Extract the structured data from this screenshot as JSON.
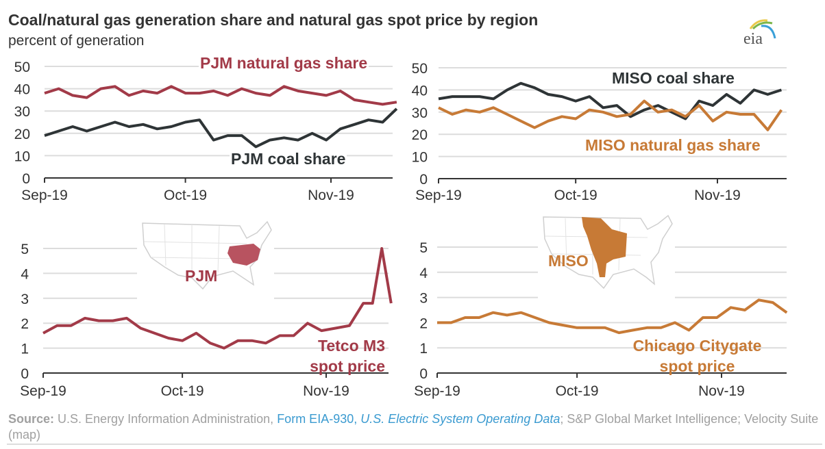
{
  "title": "Coal/natural gas generation share and  natural gas spot price by region",
  "subtitle": "percent of generation",
  "logo_text": "eia",
  "colors": {
    "pjm": "#a23a48",
    "coal": "#2e3436",
    "miso": "#c77a36",
    "grid": "#dcdcdc",
    "map_outline": "#cfcfcf"
  },
  "maps": {
    "pjm_label": "PJM",
    "miso_label": "MISO"
  },
  "source": {
    "label": "Source:",
    "text1": " U.S. Energy Information Administration, ",
    "link1": "Form EIA-930",
    "sep": ", ",
    "link2": "U.S. Electric System Operating Data",
    "text2": "; S&P Global Market Intelligence; Velocity Suite (map)"
  },
  "chart_data": [
    {
      "type": "line",
      "id": "pjm-share",
      "ylim": [
        0,
        50
      ],
      "yticks": [
        0,
        10,
        20,
        30,
        40,
        50
      ],
      "xticks": [
        {
          "date": "2019-09-01",
          "label": "Sep-19"
        },
        {
          "date": "2019-10-01",
          "label": "Oct-19"
        },
        {
          "date": "2019-11-01",
          "label": "Nov-19"
        }
      ],
      "grid": true,
      "x": [
        "2019-09-01",
        "2019-09-04",
        "2019-09-07",
        "2019-09-10",
        "2019-09-13",
        "2019-09-16",
        "2019-09-19",
        "2019-09-22",
        "2019-09-25",
        "2019-09-28",
        "2019-10-01",
        "2019-10-04",
        "2019-10-07",
        "2019-10-10",
        "2019-10-13",
        "2019-10-16",
        "2019-10-19",
        "2019-10-22",
        "2019-10-25",
        "2019-10-28",
        "2019-10-31",
        "2019-11-03",
        "2019-11-06",
        "2019-11-09",
        "2019-11-12",
        "2019-11-15"
      ],
      "series": [
        {
          "name": "PJM natural gas share",
          "color": "#a23a48",
          "values": [
            38,
            40,
            37,
            36,
            40,
            41,
            37,
            39,
            38,
            41,
            38,
            38,
            39,
            37,
            40,
            38,
            37,
            41,
            39,
            38,
            37,
            39,
            35,
            34,
            33,
            34
          ]
        },
        {
          "name": "PJM coal share",
          "color": "#2e3436",
          "values": [
            19,
            21,
            23,
            21,
            23,
            25,
            23,
            24,
            22,
            23,
            25,
            26,
            17,
            19,
            19,
            14,
            17,
            18,
            17,
            20,
            17,
            22,
            24,
            26,
            25,
            31
          ]
        }
      ]
    },
    {
      "type": "line",
      "id": "miso-share",
      "ylim": [
        0,
        50
      ],
      "yticks": [
        0,
        10,
        20,
        30,
        40,
        50
      ],
      "xticks": [
        {
          "date": "2019-09-01",
          "label": "Sep-19"
        },
        {
          "date": "2019-10-01",
          "label": "Oct-19"
        },
        {
          "date": "2019-11-01",
          "label": "Nov-19"
        }
      ],
      "grid": true,
      "x": [
        "2019-09-01",
        "2019-09-04",
        "2019-09-07",
        "2019-09-10",
        "2019-09-13",
        "2019-09-16",
        "2019-09-19",
        "2019-09-22",
        "2019-09-25",
        "2019-09-28",
        "2019-10-01",
        "2019-10-04",
        "2019-10-07",
        "2019-10-10",
        "2019-10-13",
        "2019-10-16",
        "2019-10-19",
        "2019-10-22",
        "2019-10-25",
        "2019-10-28",
        "2019-10-31",
        "2019-11-03",
        "2019-11-06",
        "2019-11-09",
        "2019-11-12",
        "2019-11-15"
      ],
      "series": [
        {
          "name": "MISO coal share",
          "color": "#2e3436",
          "values": [
            36,
            37,
            37,
            37,
            36,
            40,
            43,
            41,
            38,
            37,
            35,
            37,
            32,
            33,
            28,
            31,
            33,
            30,
            27,
            35,
            33,
            38,
            34,
            40,
            38,
            40
          ]
        },
        {
          "name": "MISO natural gas share",
          "color": "#c77a36",
          "values": [
            32,
            29,
            31,
            30,
            32,
            29,
            26,
            23,
            26,
            28,
            27,
            31,
            30,
            28,
            29,
            35,
            30,
            31,
            28,
            33,
            26,
            30,
            29,
            29,
            22,
            31
          ]
        }
      ]
    },
    {
      "type": "line",
      "id": "pjm-price",
      "ylim": [
        0,
        5
      ],
      "yticks": [
        0,
        1,
        2,
        3,
        4,
        5
      ],
      "xticks": [
        {
          "date": "2019-09-01",
          "label": "Sep-19"
        },
        {
          "date": "2019-10-01",
          "label": "Oct-19"
        },
        {
          "date": "2019-11-01",
          "label": "Nov-19"
        }
      ],
      "grid": true,
      "x": [
        "2019-09-01",
        "2019-09-04",
        "2019-09-07",
        "2019-09-10",
        "2019-09-13",
        "2019-09-16",
        "2019-09-19",
        "2019-09-22",
        "2019-09-25",
        "2019-09-28",
        "2019-10-01",
        "2019-10-04",
        "2019-10-07",
        "2019-10-10",
        "2019-10-13",
        "2019-10-16",
        "2019-10-19",
        "2019-10-22",
        "2019-10-25",
        "2019-10-28",
        "2019-10-31",
        "2019-11-03",
        "2019-11-06",
        "2019-11-09",
        "2019-11-11",
        "2019-11-13",
        "2019-11-15"
      ],
      "series": [
        {
          "name": "Tetco M3 spot price",
          "color": "#a23a48",
          "values": [
            1.6,
            1.9,
            1.9,
            2.2,
            2.1,
            2.1,
            2.2,
            1.8,
            1.6,
            1.4,
            1.3,
            1.6,
            1.2,
            1.0,
            1.3,
            1.3,
            1.2,
            1.5,
            1.5,
            2.0,
            1.7,
            1.8,
            1.9,
            2.8,
            2.8,
            5.0,
            2.8
          ]
        }
      ]
    },
    {
      "type": "line",
      "id": "miso-price",
      "ylim": [
        0,
        5
      ],
      "yticks": [
        0,
        1,
        2,
        3,
        4,
        5
      ],
      "xticks": [
        {
          "date": "2019-09-01",
          "label": "Sep-19"
        },
        {
          "date": "2019-10-01",
          "label": "Oct-19"
        },
        {
          "date": "2019-11-01",
          "label": "Nov-19"
        }
      ],
      "grid": true,
      "x": [
        "2019-09-01",
        "2019-09-04",
        "2019-09-07",
        "2019-09-10",
        "2019-09-13",
        "2019-09-16",
        "2019-09-19",
        "2019-09-22",
        "2019-09-25",
        "2019-09-28",
        "2019-10-01",
        "2019-10-04",
        "2019-10-07",
        "2019-10-10",
        "2019-10-13",
        "2019-10-16",
        "2019-10-19",
        "2019-10-22",
        "2019-10-25",
        "2019-10-28",
        "2019-10-31",
        "2019-11-03",
        "2019-11-06",
        "2019-11-09",
        "2019-11-12",
        "2019-11-15"
      ],
      "series": [
        {
          "name": "Chicago Citygate spot price",
          "color": "#c77a36",
          "values": [
            2.0,
            2.0,
            2.2,
            2.2,
            2.4,
            2.3,
            2.4,
            2.2,
            2.0,
            1.9,
            1.8,
            1.8,
            1.8,
            1.6,
            1.7,
            1.8,
            1.8,
            2.0,
            1.7,
            2.2,
            2.2,
            2.6,
            2.5,
            2.9,
            2.8,
            2.4
          ]
        }
      ]
    }
  ]
}
